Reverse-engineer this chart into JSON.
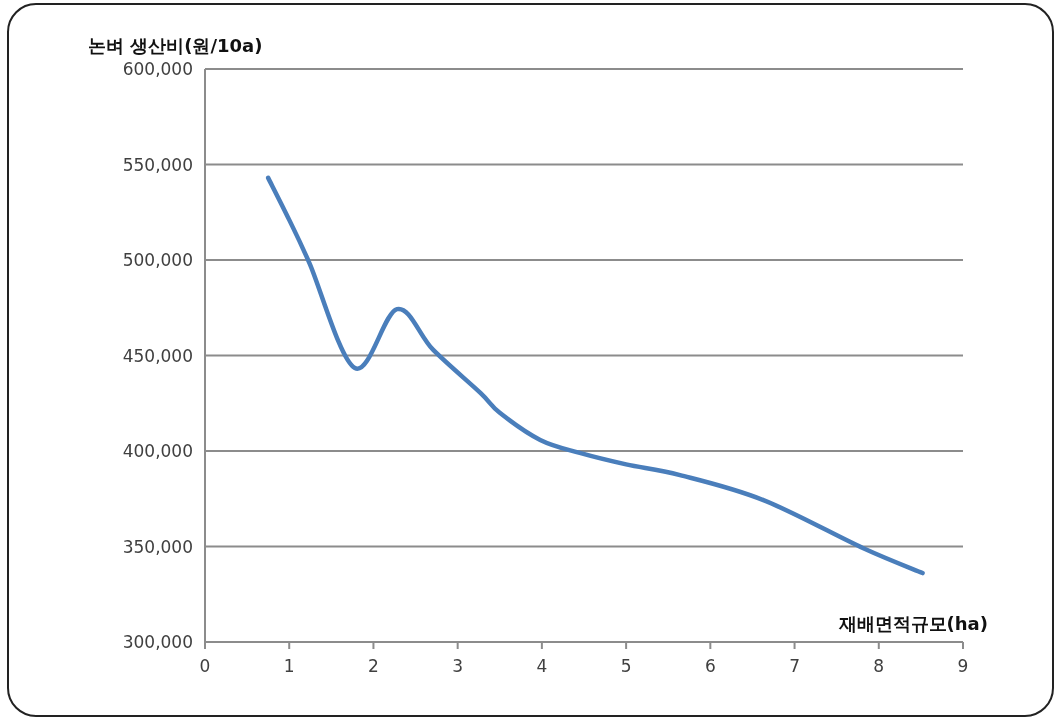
{
  "chart_data": {
    "type": "line",
    "xlabel": "재배면적규모(ha)",
    "ylabel": "논벼 생산비(원/10a)",
    "x": [
      0.75,
      1.0,
      1.24,
      1.78,
      2.28,
      2.71,
      3.27,
      3.5,
      3.98,
      4.45,
      5.0,
      5.64,
      6.63,
      7.81,
      8.52
    ],
    "series": [
      {
        "color": "#4a7ebb",
        "values": [
          543000,
          521000,
          498400,
          443400,
          474300,
          452900,
          430400,
          420000,
          405800,
          399000,
          393000,
          387400,
          374300,
          349200,
          336100
        ]
      }
    ],
    "xlim": [
      0,
      9
    ],
    "ylim": [
      300000,
      600000
    ],
    "xticks": [
      0,
      1,
      2,
      3,
      4,
      5,
      6,
      7,
      8,
      9
    ],
    "yticks": [
      {
        "value": 300000,
        "label": "300,000"
      },
      {
        "value": 350000,
        "label": "350,000"
      },
      {
        "value": 400000,
        "label": "400,000"
      },
      {
        "value": 450000,
        "label": "450,000"
      },
      {
        "value": 500000,
        "label": "500,000"
      },
      {
        "value": 550000,
        "label": "550,000"
      },
      {
        "value": 600000,
        "label": "600,000"
      }
    ],
    "grid": "y",
    "marker": "none",
    "line_style": "solid"
  }
}
